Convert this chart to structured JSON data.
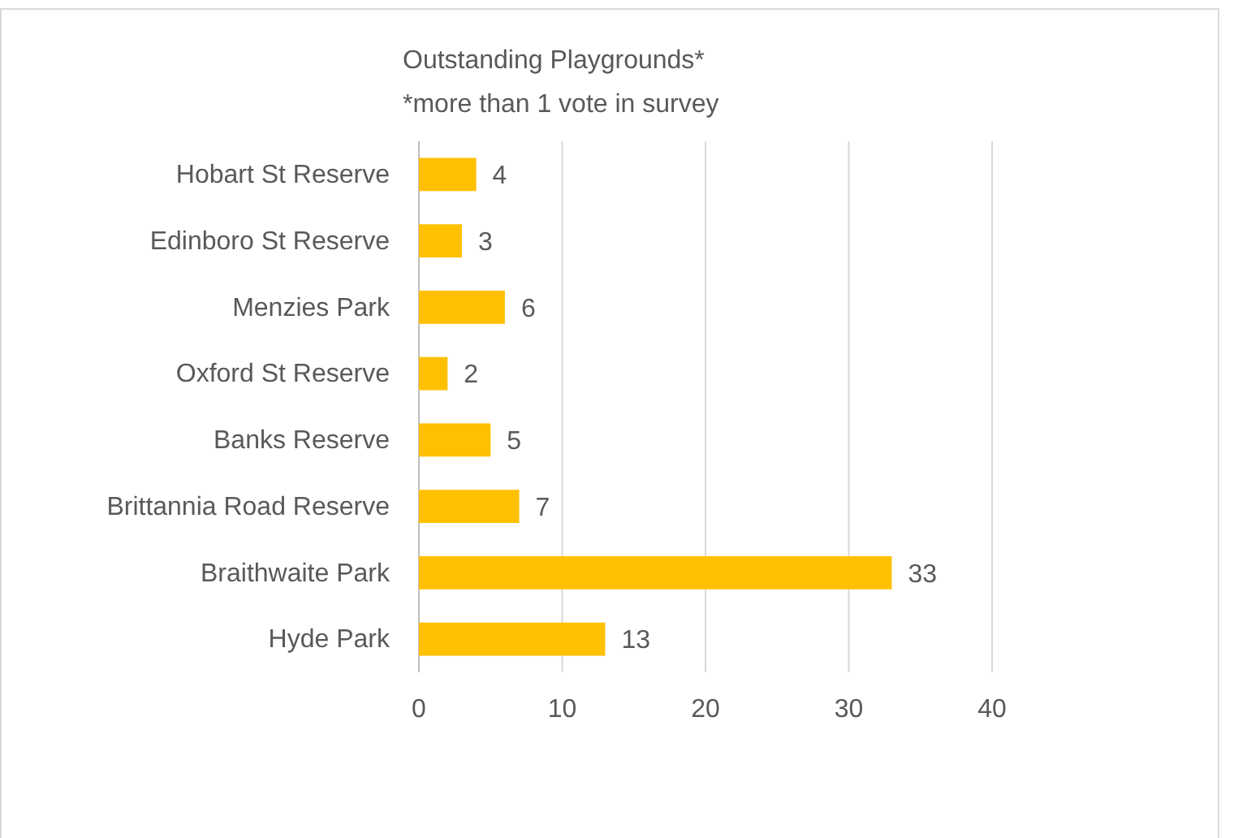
{
  "chart_data": {
    "type": "bar",
    "orientation": "horizontal",
    "title": "Outstanding Playgrounds*",
    "subtitle": "*more than 1 vote in survey",
    "categories": [
      "Hobart St Reserve",
      "Edinboro St Reserve",
      "Menzies Park",
      "Oxford St Reserve",
      "Banks Reserve",
      "Brittannia Road Reserve",
      "Braithwaite Park",
      "Hyde Park"
    ],
    "values": [
      4,
      3,
      6,
      2,
      5,
      7,
      33,
      13
    ],
    "color": "#ffc000",
    "xlim": [
      0,
      40
    ],
    "xticks": [
      0,
      10,
      20,
      30,
      40
    ],
    "grid": "x",
    "data_labels": true
  }
}
